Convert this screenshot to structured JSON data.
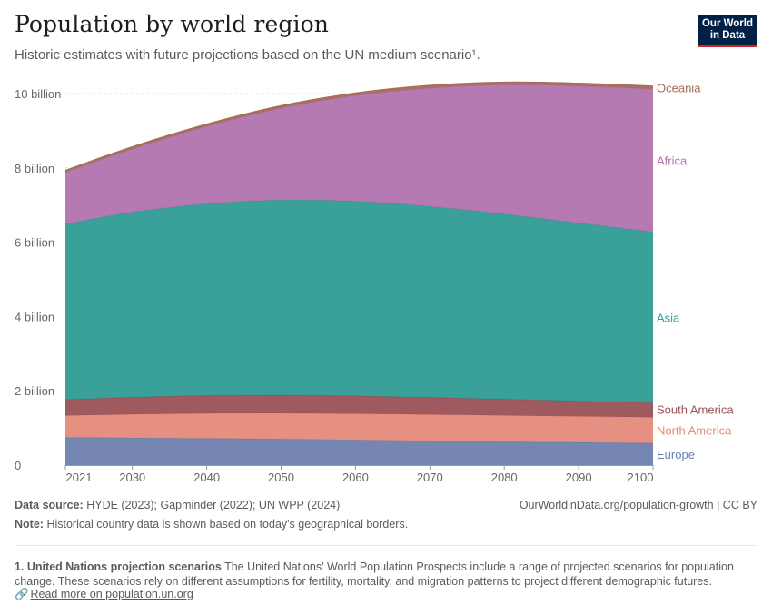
{
  "header": {
    "title": "Population by world region",
    "subtitle": "Historic estimates with future projections based on the UN medium scenario¹.",
    "logo_line1": "Our World",
    "logo_line2": "in Data"
  },
  "footer": {
    "source_label": "Data source:",
    "source_text": "HYDE (2023); Gapminder (2022); UN WPP (2024)",
    "credit": "OurWorldinData.org/population-growth | CC BY",
    "note_label": "Note:",
    "note_text": "Historical country data is shown based on today's geographical borders.",
    "footnote_title": "1. United Nations projection scenarios",
    "footnote_text": "The United Nations' World Population Prospects include a range of projected scenarios for population change. These scenarios rely on different assumptions for fertility, mortality, and migration patterns to project different demographic futures.",
    "footnote_link": "Read more on population.un.org",
    "link_icon": "link-icon"
  },
  "chart_data": {
    "type": "area",
    "stacked": true,
    "title": "Population by world region",
    "xlabel": "",
    "ylabel": "",
    "x": [
      2021,
      2030,
      2040,
      2050,
      2060,
      2070,
      2080,
      2090,
      2100
    ],
    "xticks": [
      "2021",
      "2030",
      "2040",
      "2050",
      "2060",
      "2070",
      "2080",
      "2090",
      "2100"
    ],
    "ylim": [
      0,
      10000000000
    ],
    "yticks": [
      {
        "value": 0,
        "label": "0"
      },
      {
        "value": 2000000000,
        "label": "2 billion"
      },
      {
        "value": 4000000000,
        "label": "4 billion"
      },
      {
        "value": 6000000000,
        "label": "6 billion"
      },
      {
        "value": 8000000000,
        "label": "8 billion"
      },
      {
        "value": 10000000000,
        "label": "10 billion"
      }
    ],
    "grid": true,
    "legend": "right, inline labels",
    "series": [
      {
        "name": "Europe",
        "color": "#6d80ad",
        "values": [
          745000000,
          735000000,
          720000000,
          703000000,
          680000000,
          655000000,
          630000000,
          610000000,
          590000000
        ]
      },
      {
        "name": "North America",
        "color": "#e58a7a",
        "values": [
          590000000,
          630000000,
          670000000,
          690000000,
          700000000,
          705000000,
          705000000,
          700000000,
          695000000
        ]
      },
      {
        "name": "South America",
        "color": "#9a5157",
        "values": [
          430000000,
          460000000,
          480000000,
          490000000,
          480000000,
          460000000,
          440000000,
          415000000,
          390000000
        ]
      },
      {
        "name": "Asia",
        "color": "#2f9c95",
        "values": [
          4720000000,
          4980000000,
          5160000000,
          5250000000,
          5240000000,
          5140000000,
          4980000000,
          4790000000,
          4600000000
        ]
      },
      {
        "name": "Africa",
        "color": "#b073ad",
        "values": [
          1400000000,
          1710000000,
          2090000000,
          2480000000,
          2850000000,
          3190000000,
          3480000000,
          3690000000,
          3850000000
        ]
      },
      {
        "name": "Oceania",
        "color": "#a46d55",
        "values": [
          44000000,
          49000000,
          54000000,
          58000000,
          62000000,
          66000000,
          68000000,
          70000000,
          72000000
        ]
      }
    ]
  }
}
